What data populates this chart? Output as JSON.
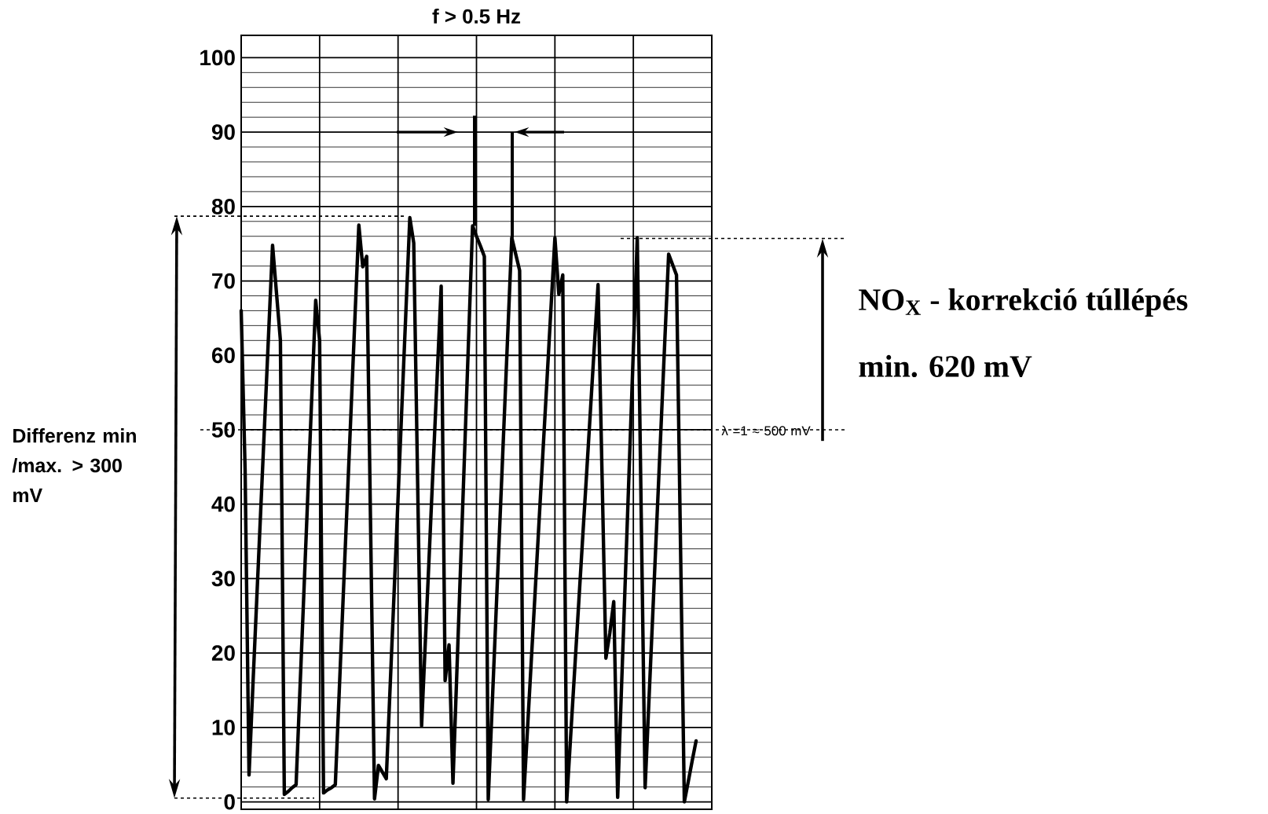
{
  "chart_data": {
    "type": "line",
    "title": "f > 0.5 Hz",
    "categories": [
      null,
      null,
      null,
      null,
      null,
      null,
      null,
      null,
      null,
      null,
      null,
      null,
      null,
      null,
      null,
      null,
      null,
      null,
      null,
      null,
      null,
      null,
      null,
      null,
      null,
      null,
      null,
      null,
      null,
      null,
      null,
      null,
      null,
      null,
      null,
      null,
      null,
      null,
      null,
      null,
      null,
      null,
      null,
      null,
      null,
      null,
      null,
      null,
      null,
      null,
      null,
      null,
      null,
      null,
      null,
      null,
      null,
      null,
      null,
      null,
      null,
      null,
      null,
      null,
      null,
      null,
      null,
      null,
      null,
      null,
      null,
      null,
      null,
      null,
      null,
      null,
      null,
      null,
      null,
      null,
      null,
      null,
      null,
      null,
      null,
      null,
      null,
      null,
      null,
      null,
      null,
      null,
      null,
      null,
      null,
      null,
      null,
      null,
      null,
      null,
      null,
      null,
      null,
      null,
      null,
      null,
      null,
      null,
      null,
      null,
      null,
      null,
      null,
      null,
      null,
      null,
      null,
      null,
      null,
      null,
      null
    ],
    "series": [
      {
        "color": "#000000",
        "values": [
          66,
          44.6,
          3.6,
          15.8,
          27.6,
          39.4,
          51.2,
          63,
          74.8,
          68.4,
          62,
          1.0,
          1.4,
          1.9,
          2.3,
          15.3,
          28.3,
          41.4,
          54.4,
          67.4,
          62,
          1.2,
          1.6,
          1.9,
          2.3,
          14.8,
          27.4,
          39.9,
          52.4,
          65,
          77.5,
          71.9,
          73.3,
          36.9,
          0.4,
          4.9,
          4.0,
          3.1,
          15.7,
          28.2,
          40.8,
          53.4,
          65.9,
          78.5,
          75.1,
          42.7,
          10.2,
          22,
          33.8,
          45.7,
          57.5,
          69.3,
          16.3,
          21.1,
          2.5,
          17.5,
          32.5,
          47.4,
          62.4,
          77.4,
          76.0,
          74.7,
          73.3,
          0.3,
          12.9,
          25.5,
          38.0,
          50.6,
          63.2,
          75.8,
          73.6,
          71.4,
          0.3,
          9.7,
          19.2,
          28.6,
          38.1,
          47.5,
          56.9,
          66.4,
          75.8,
          68.2,
          70.8,
          0,
          8.7,
          17.4,
          26.1,
          34.8,
          43.4,
          52.1,
          60.8,
          69.5,
          44.4,
          19.3,
          22.7,
          26.9,
          0.6,
          15.6,
          30.7,
          45.7,
          60.7,
          75.8,
          38.9,
          1.9,
          13.9,
          25.8,
          37.8,
          49.7,
          61.7,
          73.6,
          72.2,
          70.8,
          35.4,
          0,
          2.7,
          5.5,
          8.2,
          null,
          null,
          null,
          null
        ]
      }
    ],
    "ylim": [
      -1,
      103
    ],
    "yticks": [
      0,
      10,
      20,
      30,
      40,
      50,
      60,
      70,
      80,
      90,
      100
    ],
    "tick_labels": "y",
    "grid": true,
    "ref_lines": [
      {
        "axis": "y",
        "value": 78.7,
        "line_style": "dotted"
      },
      {
        "axis": "y",
        "value": 0.5,
        "line_style": "dotted"
      },
      {
        "axis": "y",
        "value": 75.7,
        "line_style": "dotted"
      },
      {
        "axis": "y",
        "value": 50,
        "line_style": "dotted"
      }
    ],
    "annotations": [
      "Differenz min /max. > 300 mV",
      "NO$_{X}$ - korrekció túllépés",
      "min. 620 mV",
      "λ =1 ≈ 500 mV"
    ]
  }
}
